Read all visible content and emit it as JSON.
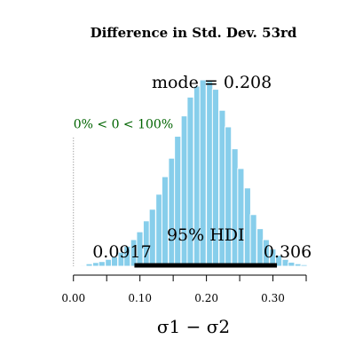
{
  "chart_data": {
    "type": "bar",
    "title": "Difference in Std. Dev. 53rd",
    "xlabel": "σ1 − σ2",
    "ylabel": "",
    "xlim": [
      -0.005,
      0.37
    ],
    "xticks": [
      0.0,
      0.05,
      0.1,
      0.15,
      0.2,
      0.25,
      0.3,
      0.35
    ],
    "xtick_labels": [
      "0.00",
      "",
      "0.10",
      "",
      "0.20",
      "",
      "0.30",
      ""
    ],
    "bin_width": 0.0095,
    "bin_starts": [
      0.01,
      0.019,
      0.029,
      0.038,
      0.048,
      0.057,
      0.067,
      0.076,
      0.086,
      0.095,
      0.105,
      0.114,
      0.124,
      0.133,
      0.143,
      0.152,
      0.162,
      0.171,
      0.181,
      0.19,
      0.2,
      0.209,
      0.219,
      0.228,
      0.238,
      0.247,
      0.257,
      0.266,
      0.276,
      0.285,
      0.295,
      0.304,
      0.314,
      0.323,
      0.333,
      0.342,
      0.352
    ],
    "values": [
      0.3,
      0.8,
      1.2,
      1.5,
      2.2,
      3.0,
      4.5,
      6.4,
      8.5,
      11.0,
      14.5,
      18.2,
      23.0,
      28.6,
      34.5,
      41.5,
      48.0,
      54.0,
      57.5,
      59.5,
      59.0,
      56.5,
      49.8,
      44.5,
      37.5,
      31.2,
      25.0,
      16.5,
      12.0,
      8.5,
      5.5,
      3.5,
      2.2,
      1.3,
      0.8,
      0.5,
      0.2
    ],
    "ylim": [
      0,
      68
    ],
    "mode_text": "mode = 0.208",
    "comparison_value": 0,
    "comparison_text": "0% < 0 < 100%",
    "hdi": {
      "label": "95% HDI",
      "low": 0.0917,
      "high": 0.306,
      "low_text": "0.0917",
      "high_text": "0.306"
    }
  },
  "colors": {
    "bar_fill": "#87CEEB",
    "bar_edge": "#ffffff",
    "comparison_text": "#006400",
    "hdi_line": "#000000"
  }
}
